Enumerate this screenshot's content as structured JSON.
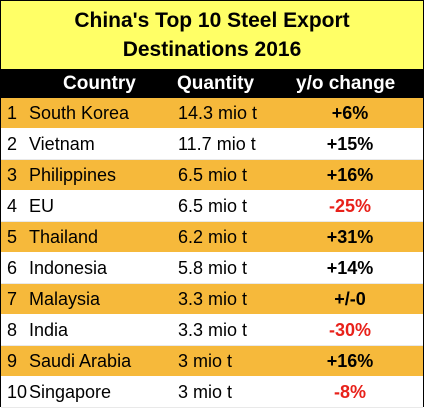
{
  "chart_data": {
    "type": "table",
    "title_line1": "China's Top 10 Steel Export",
    "title_line2": "Destinations 2016",
    "columns": {
      "country": "Country",
      "quantity": "Quantity",
      "change": "y/o change"
    },
    "rows": [
      {
        "rank": "1",
        "country": "South Korea",
        "quantity": "14.3 mio t",
        "change": "+6%",
        "negative": false
      },
      {
        "rank": "2",
        "country": "Vietnam",
        "quantity": "11.7 mio t",
        "change": "+15%",
        "negative": false
      },
      {
        "rank": "3",
        "country": "Philippines",
        "quantity": "6.5 mio t",
        "change": "+16%",
        "negative": false
      },
      {
        "rank": "4",
        "country": "EU",
        "quantity": "6.5 mio t",
        "change": "-25%",
        "negative": true
      },
      {
        "rank": "5",
        "country": "Thailand",
        "quantity": "6.2 mio t",
        "change": "+31%",
        "negative": false
      },
      {
        "rank": "6",
        "country": "Indonesia",
        "quantity": "5.8 mio t",
        "change": "+14%",
        "negative": false
      },
      {
        "rank": "7",
        "country": "Malaysia",
        "quantity": "3.3 mio t",
        "change": "+/-0",
        "negative": false
      },
      {
        "rank": "8",
        "country": "India",
        "quantity": "3.3 mio t",
        "change": "-30%",
        "negative": true
      },
      {
        "rank": "9",
        "country": "Saudi Arabia",
        "quantity": "3 mio t",
        "change": "+16%",
        "negative": false
      },
      {
        "rank": "10",
        "country": "Singapore",
        "quantity": "3 mio t",
        "change": "-8%",
        "negative": true
      }
    ]
  },
  "colors": {
    "title_bg": "#ffff66",
    "header_bg": "#000000",
    "row_highlight": "#f6b93b",
    "negative": "#e8211a"
  }
}
